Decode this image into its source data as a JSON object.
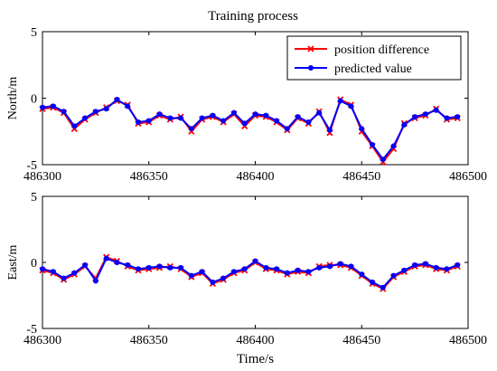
{
  "title": "Training process",
  "colors": {
    "position_difference": "#ff0000",
    "predicted_value": "#0000ff",
    "axes": "#000000"
  },
  "chart_data": [
    {
      "type": "line",
      "title": "Training process",
      "xlabel": "",
      "ylabel": "North/m",
      "xlim": [
        486300,
        486500
      ],
      "ylim": [
        -5,
        5
      ],
      "xticks": [
        "486300",
        "486350",
        "486400",
        "486450",
        "486500"
      ],
      "yticks": [
        "5",
        "0",
        "-5"
      ],
      "legend": {
        "placement": "top-right",
        "entries": [
          "position difference",
          "predicted value"
        ]
      },
      "x": [
        486300,
        486305,
        486310,
        486315,
        486320,
        486325,
        486330,
        486335,
        486340,
        486345,
        486350,
        486355,
        486360,
        486365,
        486370,
        486375,
        486380,
        486385,
        486390,
        486395,
        486400,
        486405,
        486410,
        486415,
        486420,
        486425,
        486430,
        486435,
        486440,
        486445,
        486450,
        486455,
        486460,
        486465,
        486470,
        486475,
        486480,
        486485,
        486490,
        486495
      ],
      "series": [
        {
          "name": "position difference",
          "marker": "x",
          "values": [
            -0.8,
            -0.7,
            -1.1,
            -2.3,
            -1.6,
            -1.1,
            -0.7,
            -0.2,
            -0.5,
            -1.9,
            -1.8,
            -1.3,
            -1.6,
            -1.4,
            -2.5,
            -1.6,
            -1.4,
            -1.8,
            -1.2,
            -2.1,
            -1.3,
            -1.4,
            -1.8,
            -2.4,
            -1.5,
            -1.9,
            -1.0,
            -2.6,
            -0.1,
            -0.5,
            -2.5,
            -3.6,
            -4.8,
            -3.8,
            -1.9,
            -1.5,
            -1.3,
            -0.8,
            -1.6,
            -1.5
          ]
        },
        {
          "name": "predicted value",
          "marker": "o",
          "values": [
            -0.7,
            -0.6,
            -1.0,
            -2.1,
            -1.5,
            -1.0,
            -0.8,
            -0.1,
            -0.6,
            -1.8,
            -1.7,
            -1.2,
            -1.5,
            -1.5,
            -2.3,
            -1.5,
            -1.3,
            -1.7,
            -1.1,
            -1.9,
            -1.2,
            -1.3,
            -1.7,
            -2.3,
            -1.4,
            -1.8,
            -1.1,
            -2.4,
            -0.2,
            -0.6,
            -2.3,
            -3.5,
            -4.6,
            -3.6,
            -2.0,
            -1.4,
            -1.2,
            -0.9,
            -1.5,
            -1.4
          ]
        }
      ]
    },
    {
      "type": "line",
      "title": "",
      "xlabel": "Time/s",
      "ylabel": "East/m",
      "xlim": [
        486300,
        486500
      ],
      "ylim": [
        -5,
        5
      ],
      "xticks": [
        "486300",
        "486350",
        "486400",
        "486450",
        "486500"
      ],
      "yticks": [
        "5",
        "0",
        "-5"
      ],
      "x": [
        486300,
        486305,
        486310,
        486315,
        486320,
        486325,
        486330,
        486335,
        486340,
        486345,
        486350,
        486355,
        486360,
        486365,
        486370,
        486375,
        486380,
        486385,
        486390,
        486395,
        486400,
        486405,
        486410,
        486415,
        486420,
        486425,
        486430,
        486435,
        486440,
        486445,
        486450,
        486455,
        486460,
        486465,
        486470,
        486475,
        486480,
        486485,
        486490,
        486495
      ],
      "series": [
        {
          "name": "position difference",
          "marker": "x",
          "values": [
            -0.6,
            -0.8,
            -1.3,
            -0.9,
            -0.3,
            -1.2,
            0.4,
            0.1,
            -0.3,
            -0.6,
            -0.5,
            -0.4,
            -0.3,
            -0.5,
            -1.1,
            -0.8,
            -1.6,
            -1.3,
            -0.8,
            -0.6,
            0.0,
            -0.5,
            -0.6,
            -0.9,
            -0.7,
            -0.8,
            -0.3,
            -0.2,
            -0.2,
            -0.4,
            -1.0,
            -1.6,
            -2.0,
            -1.1,
            -0.7,
            -0.3,
            -0.2,
            -0.5,
            -0.6,
            -0.3
          ]
        },
        {
          "name": "predicted value",
          "marker": "o",
          "values": [
            -0.5,
            -0.7,
            -1.2,
            -0.8,
            -0.2,
            -1.4,
            0.3,
            0.0,
            -0.2,
            -0.5,
            -0.4,
            -0.3,
            -0.4,
            -0.4,
            -1.0,
            -0.7,
            -1.5,
            -1.2,
            -0.7,
            -0.5,
            0.1,
            -0.4,
            -0.5,
            -0.8,
            -0.6,
            -0.7,
            -0.4,
            -0.3,
            -0.1,
            -0.3,
            -0.9,
            -1.5,
            -1.9,
            -1.0,
            -0.6,
            -0.2,
            -0.1,
            -0.4,
            -0.5,
            -0.2
          ]
        }
      ]
    }
  ]
}
